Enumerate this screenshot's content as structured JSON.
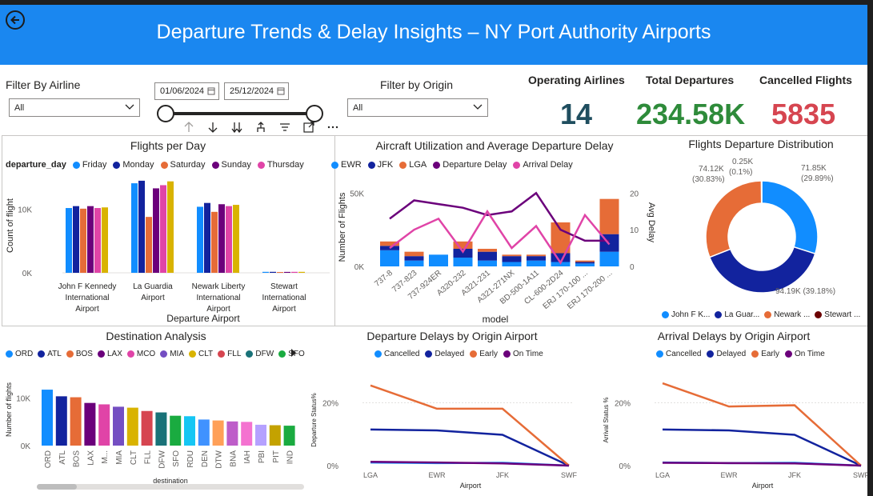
{
  "header": {
    "title": "Departure Trends & Delay Insights – NY Port Authority Airports"
  },
  "filters": {
    "airline_label": "Filter By Airline",
    "airline_value": "All",
    "origin_label": "Filter by Origin",
    "origin_value": "All",
    "date_start": "01/06/2024",
    "date_end": "25/12/2024"
  },
  "kpis": {
    "operating_airlines_label": "Operating Airlines",
    "operating_airlines_value": "14",
    "total_departures_label": "Total Departures",
    "total_departures_value": "234.58K",
    "cancelled_label": "Cancelled Flights",
    "cancelled_value": "5835",
    "colors": {
      "airlines": "#1f4e5f",
      "departures": "#2e8b3a",
      "cancelled": "#d64550"
    }
  },
  "colors": {
    "friday": "#118dff",
    "monday": "#12239e",
    "saturday": "#e66c37",
    "sunday": "#6b007b",
    "thursday": "#e044a7",
    "extra": "#d9b300",
    "ewr": "#118dff",
    "jfk": "#12239e",
    "lga": "#e66c37",
    "dep_delay": "#6b007b",
    "arr_delay": "#e044a7",
    "stewart": "#6b0000"
  },
  "chart_data": [
    {
      "id": "flights_per_day",
      "type": "bar",
      "title": "Flights per Day",
      "legend_title": "departure_day",
      "xlabel": "Departure Airport",
      "ylabel": "Count of flight",
      "yticks": [
        "0K",
        "10K"
      ],
      "ylim": [
        0,
        16000
      ],
      "categories": [
        "John F Kennedy International Airport",
        "La Guardia Airport",
        "Newark Liberty International Airport",
        "Stewart International Airport"
      ],
      "category_lines": [
        [
          "John F Kennedy",
          "International",
          "Airport"
        ],
        [
          "La Guardia",
          "Airport"
        ],
        [
          "Newark Liberty",
          "International",
          "Airport"
        ],
        [
          "Stewart",
          "International",
          "Airport"
        ]
      ],
      "series": [
        {
          "name": "Friday",
          "values": [
            10200,
            14100,
            10400,
            150
          ]
        },
        {
          "name": "Monday",
          "values": [
            10500,
            14500,
            11000,
            150
          ]
        },
        {
          "name": "Saturday",
          "values": [
            10100,
            8800,
            9600,
            120
          ]
        },
        {
          "name": "Sunday",
          "values": [
            10500,
            13300,
            10800,
            140
          ]
        },
        {
          "name": "Thursday",
          "values": [
            10200,
            13800,
            10500,
            150
          ]
        },
        {
          "values": [
            10300,
            14400,
            10700,
            150
          ]
        }
      ]
    },
    {
      "id": "aircraft_utilization",
      "type": "bar",
      "title": "Aircraft Utilization and Average Departure Delay",
      "xlabel": "model",
      "ylabel": "Number of Flights",
      "y2label": "Avg Delay",
      "yticks": [
        "0K",
        "50K"
      ],
      "y2ticks": [
        "0",
        "10",
        "20"
      ],
      "ylim": [
        0,
        60000
      ],
      "y2lim": [
        0,
        24
      ],
      "categories": [
        "737-8",
        "737-823",
        "737-924ER",
        "A320-232",
        "A321-231",
        "A321-271NX",
        "BD-500-1A11",
        "CL-600-2D24",
        "ERJ 170-100 ...",
        "ERJ 170-200 ..."
      ],
      "series": [
        {
          "name": "EWR",
          "values": [
            11000,
            4000,
            8000,
            6000,
            4000,
            3000,
            4000,
            3000,
            2000,
            10000
          ]
        },
        {
          "name": "JFK",
          "values": [
            3000,
            3000,
            0,
            6000,
            6000,
            4000,
            3000,
            6000,
            1000,
            12000
          ]
        },
        {
          "name": "LGA",
          "values": [
            3000,
            3000,
            0,
            5000,
            2000,
            1000,
            1000,
            21000,
            1000,
            24000
          ]
        }
      ],
      "lines": [
        {
          "name": "Departure Delay",
          "values": [
            13,
            18,
            17,
            16,
            14,
            15,
            20,
            10,
            7,
            7
          ]
        },
        {
          "name": "Arrival Delay",
          "values": [
            5,
            10,
            13,
            4,
            15,
            5,
            11,
            1,
            14,
            6
          ]
        }
      ]
    },
    {
      "id": "departure_distribution",
      "type": "pie",
      "title": "Flights Departure Distribution",
      "labels": [
        "John F K...",
        "La Guar...",
        "Newark ...",
        "Stewart ..."
      ],
      "values": [
        71850,
        94190,
        74120,
        250
      ],
      "data_labels": [
        [
          "71.85K",
          "(29.89%)"
        ],
        [
          "94.19K (39.18%)"
        ],
        [
          "74.12K",
          "(30.83%)"
        ],
        [
          "0.25K",
          "(0.1%)"
        ]
      ]
    },
    {
      "id": "destination_analysis",
      "type": "bar",
      "title": "Destination Analysis",
      "xlabel": "destination",
      "ylabel": "Number of flights",
      "yticks": [
        "0K",
        "10K"
      ],
      "ylim": [
        0,
        13500
      ],
      "legend": [
        "ORD",
        "ATL",
        "BOS",
        "LAX",
        "MCO",
        "MIA",
        "CLT",
        "FLL",
        "DFW",
        "SFO"
      ],
      "categories": [
        "ORD",
        "ATL",
        "BOS",
        "LAX",
        "M...",
        "MIA",
        "CLT",
        "FLL",
        "DFW",
        "SFO",
        "RDU",
        "DEN",
        "DTW",
        "BNA",
        "IAH",
        "PBI",
        "PIT",
        "IND"
      ],
      "values": [
        11800,
        10400,
        10200,
        9000,
        8700,
        8200,
        8000,
        7300,
        7000,
        6300,
        6200,
        5500,
        5300,
        5100,
        5000,
        4400,
        4300,
        4200
      ],
      "bar_colors": [
        "#118dff",
        "#12239e",
        "#e66c37",
        "#6b007b",
        "#e044a7",
        "#744ec2",
        "#d9b300",
        "#d64550",
        "#197278",
        "#1aab40",
        "#15c6f4",
        "#4092ff",
        "#ffa058",
        "#be5dc9",
        "#f472d0",
        "#b5a1ff",
        "#c4a200",
        "#1aab40"
      ]
    },
    {
      "id": "departure_delays_origin",
      "type": "line",
      "title": "Departure Delays by Origin Airport",
      "xlabel": "Airport",
      "ylabel": "Departure Status%",
      "yticks": [
        "0%",
        "20%"
      ],
      "ylim": [
        0,
        28
      ],
      "categories": [
        "LGA",
        "EWR",
        "JFK",
        "SWF"
      ],
      "series": [
        {
          "name": "Cancelled",
          "values": [
            1.0,
            0.8,
            0.9,
            0
          ]
        },
        {
          "name": "Delayed",
          "values": [
            11.5,
            11.2,
            9.8,
            0
          ]
        },
        {
          "name": "Early",
          "values": [
            25.5,
            18.1,
            18.1,
            0
          ]
        },
        {
          "name": "On Time",
          "values": [
            1.2,
            1.0,
            0.7,
            0
          ]
        }
      ]
    },
    {
      "id": "arrival_delays_origin",
      "type": "line",
      "title": "Arrival Delays by Origin Airport",
      "xlabel": "Airport",
      "ylabel": "Arrival Status %",
      "yticks": [
        "0%",
        "20%"
      ],
      "ylim": [
        0,
        28
      ],
      "categories": [
        "LGA",
        "EWR",
        "JFK",
        "SWF"
      ],
      "series": [
        {
          "name": "Cancelled",
          "values": [
            1.0,
            0.8,
            0.9,
            0
          ]
        },
        {
          "name": "Delayed",
          "values": [
            11.5,
            11.2,
            9.8,
            0
          ]
        },
        {
          "name": "Early",
          "values": [
            26.2,
            18.8,
            19.2,
            0
          ]
        },
        {
          "name": "On Time",
          "values": [
            0.9,
            0.8,
            0.7,
            0
          ]
        }
      ]
    }
  ]
}
